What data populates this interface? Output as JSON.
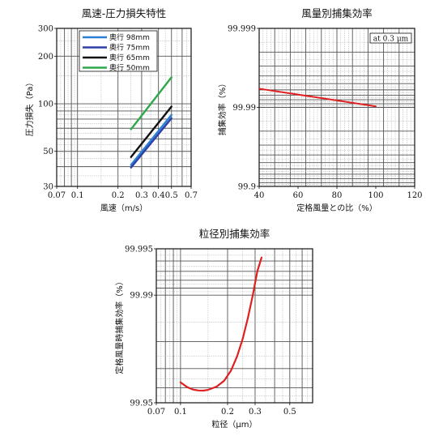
{
  "chart_data": [
    {
      "type": "line",
      "title": "風速-圧力損失特性",
      "xlabel": "風速（m/s）",
      "ylabel": "圧力損失（Pa）",
      "x_scale": "log",
      "y_scale": "log",
      "xlim": [
        0.07,
        0.7
      ],
      "ylim": [
        30,
        300
      ],
      "x_ticks": [
        0.07,
        0.1,
        0.2,
        0.3,
        0.4,
        0.5,
        0.7
      ],
      "x_tick_labels": [
        "0.07",
        "0.1",
        "0.2",
        "0.3",
        "0.4",
        "0.5",
        "0.7"
      ],
      "y_ticks": [
        30,
        50,
        100,
        200,
        300
      ],
      "y_tick_labels": [
        "30",
        "50",
        "100",
        "200",
        "300"
      ],
      "grid": true,
      "legend_position": "top-center",
      "series": [
        {
          "name": "奥行 98mm",
          "color": "#2a7fd4",
          "x": [
            0.25,
            0.5
          ],
          "y": [
            41,
            85
          ]
        },
        {
          "name": "奥行 75mm",
          "color": "#2f3fa8",
          "x": [
            0.25,
            0.5
          ],
          "y": [
            39.5,
            81
          ]
        },
        {
          "name": "奥行 65mm",
          "color": "#111111",
          "x": [
            0.25,
            0.5
          ],
          "y": [
            46,
            96
          ]
        },
        {
          "name": "奥行 50mm",
          "color": "#2ea84a",
          "x": [
            0.25,
            0.5
          ],
          "y": [
            69,
            147
          ]
        }
      ]
    },
    {
      "type": "line",
      "title": "風量別捕集効率",
      "xlabel": "定格風量との比（%）",
      "ylabel": "捕集効率（%）",
      "y_scale": "log-efficiency",
      "xlim": [
        40,
        120
      ],
      "ylim": [
        99.9,
        99.999
      ],
      "x_ticks": [
        40,
        60,
        80,
        100,
        120
      ],
      "x_tick_labels": [
        "40",
        "60",
        "80",
        "100",
        "120"
      ],
      "y_ticks": [
        99.9,
        99.99,
        99.999
      ],
      "y_tick_labels": [
        "99.9",
        "99.99",
        "99.999"
      ],
      "grid": true,
      "annotation": "at 0.3 μm",
      "series": [
        {
          "color": "#e02020",
          "x": [
            40,
            100
          ],
          "y": [
            99.9942,
            99.9903
          ]
        }
      ]
    },
    {
      "type": "line",
      "title": "粒径別捕集効率",
      "xlabel": "粒径（μm）",
      "ylabel": "定格風量時捕集効率（%）",
      "x_scale": "log",
      "y_scale": "log-efficiency",
      "xlim": [
        0.07,
        0.7
      ],
      "ylim": [
        99.95,
        99.995
      ],
      "x_ticks": [
        0.07,
        0.1,
        0.2,
        0.3,
        0.5
      ],
      "x_tick_labels": [
        "0.07",
        "0.1",
        "0.2",
        "0.3",
        "0.5"
      ],
      "y_ticks": [
        99.95,
        99.99,
        99.995
      ],
      "y_tick_labels": [
        "99.95",
        "99.99",
        "99.995"
      ],
      "grid": true,
      "series": [
        {
          "color": "#e02020",
          "x": [
            0.1,
            0.11,
            0.12,
            0.13,
            0.14,
            0.15,
            0.17,
            0.19,
            0.21,
            0.23,
            0.25,
            0.27,
            0.29,
            0.31,
            0.33
          ],
          "y": [
            99.9632,
            99.9605,
            99.959,
            99.9584,
            99.9583,
            99.9588,
            99.9607,
            99.964,
            99.969,
            99.975,
            99.9808,
            99.986,
            99.99,
            99.993,
            99.9943
          ]
        }
      ]
    }
  ]
}
